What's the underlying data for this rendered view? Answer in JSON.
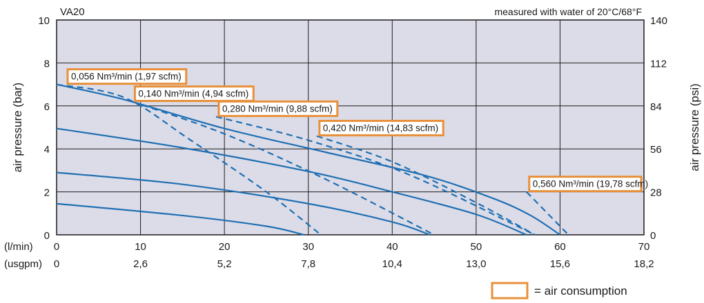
{
  "chart_data": {
    "type": "line",
    "model_label": "VA20",
    "note": "measured with water of 20°C/68°F",
    "ylabel_left": "air pressure (bar)",
    "ylabel_right": "air pressure (psi)",
    "x_row_labels": [
      "(l/min)",
      "(usgpm)"
    ],
    "xlim": [
      0,
      70
    ],
    "ylim": [
      0,
      10
    ],
    "x_ticks_lmin": [
      "0",
      "10",
      "20",
      "30",
      "40",
      "50",
      "60",
      "70"
    ],
    "x_ticks_usgpm": [
      "0",
      "2,6",
      "5,2",
      "7,8",
      "10,4",
      "13,0",
      "15,6",
      "18,2"
    ],
    "y_ticks_bar": [
      "0",
      "2",
      "4",
      "6",
      "8",
      "10"
    ],
    "y_ticks_psi": [
      "0",
      "28",
      "56",
      "84",
      "112",
      "140"
    ],
    "grid": true,
    "colors": {
      "plot_bg": "#dcdce8",
      "curve": "#1f6fb2",
      "box": "#e8903a"
    },
    "legend": {
      "label": "= air consumption",
      "placement": "bottom-right"
    },
    "pressure_curves": [
      {
        "points": [
          [
            0,
            7.0
          ],
          [
            8,
            6.3
          ],
          [
            20,
            4.95
          ],
          [
            32,
            3.85
          ],
          [
            44,
            2.75
          ],
          [
            52,
            1.7
          ],
          [
            56.5,
            0.9
          ],
          [
            60,
            0
          ]
        ]
      },
      {
        "points": [
          [
            0,
            4.95
          ],
          [
            15,
            4.05
          ],
          [
            30,
            2.95
          ],
          [
            40,
            2.0
          ],
          [
            50,
            0.95
          ],
          [
            56,
            0
          ]
        ]
      },
      {
        "points": [
          [
            0,
            2.9
          ],
          [
            15,
            2.35
          ],
          [
            30,
            1.45
          ],
          [
            40,
            0.6
          ],
          [
            44.5,
            0
          ]
        ]
      },
      {
        "points": [
          [
            0,
            1.45
          ],
          [
            15,
            0.9
          ],
          [
            25,
            0.4
          ],
          [
            29.5,
            0
          ]
        ]
      }
    ],
    "air_consumption": [
      {
        "label": "0,056 Nm³/min (1,97 scfm)",
        "points": [
          [
            0,
            7.0
          ],
          [
            8,
            6.4
          ],
          [
            16,
            4.4
          ],
          [
            25,
            2.0
          ],
          [
            31.5,
            0
          ]
        ]
      },
      {
        "label": "0,140 Nm³/min (4,94 scfm)",
        "points": [
          [
            9,
            6.2
          ],
          [
            20,
            4.7
          ],
          [
            32,
            2.6
          ],
          [
            45,
            0
          ]
        ]
      },
      {
        "label": "0,280 Nm³/min (9,88 scfm)",
        "points": [
          [
            19,
            5.5
          ],
          [
            30,
            4.4
          ],
          [
            42,
            2.8
          ],
          [
            57,
            0
          ]
        ]
      },
      {
        "label": "0,420 Nm³/min (14,83 scfm)",
        "points": [
          [
            31,
            4.6
          ],
          [
            40,
            3.4
          ],
          [
            50,
            1.5
          ],
          [
            57,
            0
          ]
        ]
      },
      {
        "label": "0,560 Nm³/min (19,78 scfm)",
        "points": [
          [
            56,
            2.0
          ],
          [
            61,
            0
          ]
        ]
      }
    ]
  }
}
